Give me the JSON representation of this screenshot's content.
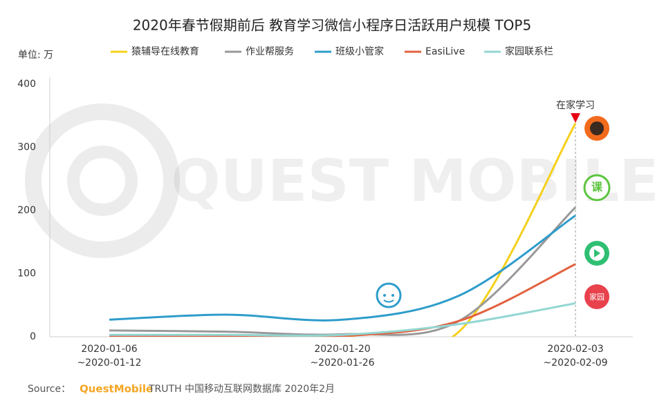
{
  "chart_data": {
    "type": "line",
    "title": "2020年春节假期前后 教育学习微信小程序日活跃用户规模 TOP5",
    "y_unit": "单位: 万",
    "categories": [
      "2020-01-06\n~2020-01-12",
      null,
      "2020-01-20\n~2020-01-26",
      null,
      "2020-02-03\n~2020-02-09"
    ],
    "series": [
      {
        "name": "猿辅导在线教育",
        "color": "#f5d01a",
        "values": [
          0,
          0,
          0,
          8,
          338
        ]
      },
      {
        "name": "作业帮服务",
        "color": "#999999",
        "values": [
          10,
          8,
          4,
          25,
          205
        ]
      },
      {
        "name": "班级小管家",
        "color": "#2e9ccb",
        "values": [
          27,
          35,
          27,
          65,
          192
        ]
      },
      {
        "name": "EasiLive",
        "color": "#e2623f",
        "values": [
          0,
          0,
          1,
          25,
          115
        ]
      },
      {
        "name": "家园联系栏",
        "color": "#93d6d2",
        "values": [
          3,
          3,
          3,
          20,
          53
        ]
      }
    ],
    "ylim": [
      0,
      400
    ],
    "yticks": [
      0,
      100,
      200,
      300,
      400
    ],
    "annotation": "在家学习",
    "icon_labels": [
      "课",
      "家园"
    ],
    "watermark": "QUEST MOBILE",
    "source": {
      "prefix": "Source：",
      "brand": "QuestMobile",
      "text": "TRUTH 中国移动互联网数据库 2020年2月"
    }
  }
}
